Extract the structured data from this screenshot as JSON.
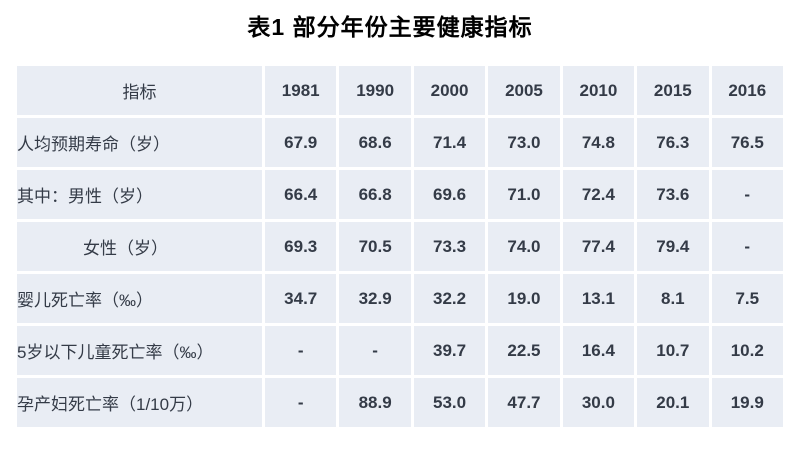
{
  "title": "表1  部分年份主要健康指标",
  "colors": {
    "page_bg": "#ffffff",
    "cell_bg": "#e9edf4",
    "grid_line": "#ffffff",
    "title_text": "#000000",
    "label_text": "#3a4150",
    "value_text": "#30353f"
  },
  "table": {
    "header": [
      "指标",
      "1981",
      "1990",
      "2000",
      "2005",
      "2010",
      "2015",
      "2016"
    ],
    "rows": [
      {
        "label": "人均预期寿命（岁）",
        "indent": false,
        "values": [
          "67.9",
          "68.6",
          "71.4",
          "73.0",
          "74.8",
          "76.3",
          "76.5"
        ]
      },
      {
        "label": "其中：男性（岁）",
        "indent": false,
        "values": [
          "66.4",
          "66.8",
          "69.6",
          "71.0",
          "72.4",
          "73.6",
          "-"
        ]
      },
      {
        "label": "女性（岁）",
        "indent": true,
        "values": [
          "69.3",
          "70.5",
          "73.3",
          "74.0",
          "77.4",
          "79.4",
          "-"
        ]
      },
      {
        "label": "婴儿死亡率（‰）",
        "indent": false,
        "values": [
          "34.7",
          "32.9",
          "32.2",
          "19.0",
          "13.1",
          "8.1",
          "7.5"
        ]
      },
      {
        "label": "5岁以下儿童死亡率（‰）",
        "indent": false,
        "values": [
          "-",
          "-",
          "39.7",
          "22.5",
          "16.4",
          "10.7",
          "10.2"
        ]
      },
      {
        "label": "孕产妇死亡率（1/10万）",
        "indent": false,
        "values": [
          "-",
          "88.9",
          "53.0",
          "47.7",
          "30.0",
          "20.1",
          "19.9"
        ]
      }
    ]
  },
  "chart_data": {
    "type": "table",
    "title": "表1  部分年份主要健康指标",
    "columns": [
      "指标",
      "1981",
      "1990",
      "2000",
      "2005",
      "2010",
      "2015",
      "2016"
    ],
    "rows": [
      [
        "人均预期寿命（岁）",
        "67.9",
        "68.6",
        "71.4",
        "73.0",
        "74.8",
        "76.3",
        "76.5"
      ],
      [
        "其中：男性（岁）",
        "66.4",
        "66.8",
        "69.6",
        "71.0",
        "72.4",
        "73.6",
        "-"
      ],
      [
        "女性（岁）",
        "69.3",
        "70.5",
        "73.3",
        "74.0",
        "77.4",
        "79.4",
        "-"
      ],
      [
        "婴儿死亡率（‰）",
        "34.7",
        "32.9",
        "32.2",
        "19.0",
        "13.1",
        "8.1",
        "7.5"
      ],
      [
        "5岁以下儿童死亡率（‰）",
        "-",
        "-",
        "39.7",
        "22.5",
        "16.4",
        "10.7",
        "10.2"
      ],
      [
        "孕产妇死亡率（1/10万）",
        "-",
        "88.9",
        "53.0",
        "47.7",
        "30.0",
        "20.1",
        "19.9"
      ]
    ]
  }
}
